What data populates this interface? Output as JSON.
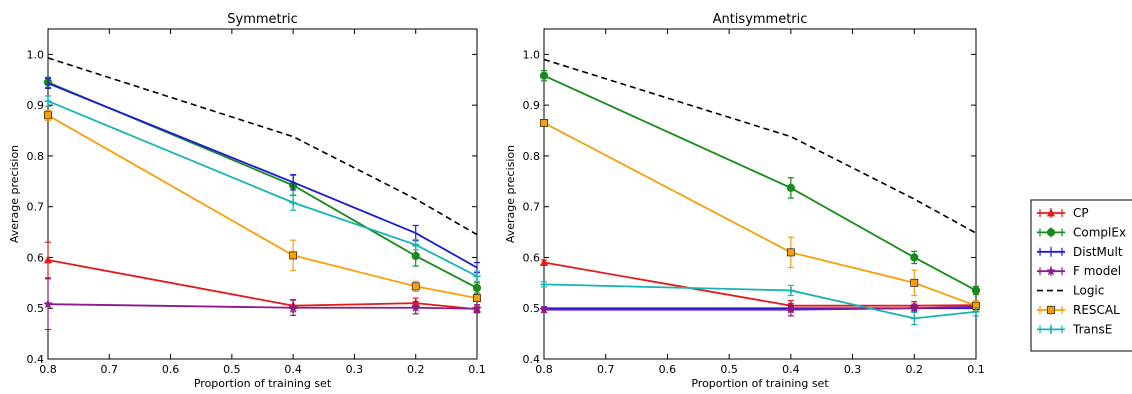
{
  "chart_data": [
    {
      "type": "line",
      "title": "Symmetric",
      "xlabel": "Proportion of training set",
      "ylabel": "Average precision",
      "x": [
        0.8,
        0.4,
        0.2,
        0.1
      ],
      "xlim": [
        0.8,
        0.1
      ],
      "ylim": [
        0.4,
        1.05
      ],
      "xticks": [
        "0.8",
        "0.7",
        "0.6",
        "0.5",
        "0.4",
        "0.3",
        "0.2",
        "0.1"
      ],
      "yticks": [
        "0.4",
        "0.5",
        "0.6",
        "0.7",
        "0.8",
        "0.9",
        "1.0"
      ],
      "grid": false,
      "series": [
        {
          "name": "CP",
          "color": "#e41a1c",
          "marker": "triangle",
          "dashed": false,
          "values": [
            0.595,
            0.505,
            0.51,
            0.498
          ],
          "errors": [
            0.035,
            0.012,
            0.01,
            0.006
          ]
        },
        {
          "name": "ComplEx",
          "color": "#1a8a1a",
          "marker": "circle",
          "dashed": false,
          "values": [
            0.945,
            0.742,
            0.603,
            0.54
          ],
          "errors": [
            0.01,
            0.02,
            0.02,
            0.01
          ]
        },
        {
          "name": "DistMult",
          "color": "#1a1adb",
          "marker": "none",
          "dashed": false,
          "values": [
            0.943,
            0.748,
            0.648,
            0.58
          ],
          "errors": [
            0.01,
            0.015,
            0.015,
            0.01
          ]
        },
        {
          "name": "F model",
          "color": "#8b1a8b",
          "marker": "star",
          "dashed": false,
          "values": [
            0.508,
            0.501,
            0.501,
            0.499
          ],
          "errors": [
            0.05,
            0.015,
            0.012,
            0.008
          ]
        },
        {
          "name": "Logic",
          "color": "#000000",
          "marker": "none",
          "dashed": true,
          "values": [
            0.993,
            0.838,
            0.715,
            0.645
          ],
          "errors": [
            0,
            0,
            0,
            0
          ]
        },
        {
          "name": "RESCAL",
          "color": "#f5a00a",
          "marker": "square",
          "dashed": false,
          "values": [
            0.88,
            0.604,
            0.543,
            0.52
          ],
          "errors": [
            0.01,
            0.03,
            0.01,
            0.005
          ]
        },
        {
          "name": "TransE",
          "color": "#17b3b3",
          "marker": "cross",
          "dashed": false,
          "values": [
            0.908,
            0.708,
            0.625,
            0.563
          ],
          "errors": [
            0.01,
            0.015,
            0.01,
            0.01
          ]
        }
      ]
    },
    {
      "type": "line",
      "title": "Antisymmetric",
      "xlabel": "Proportion of training set",
      "ylabel": "Average precision",
      "x": [
        0.8,
        0.4,
        0.2,
        0.1
      ],
      "xlim": [
        0.8,
        0.1
      ],
      "ylim": [
        0.4,
        1.05
      ],
      "xticks": [
        "0.8",
        "0.7",
        "0.6",
        "0.5",
        "0.4",
        "0.3",
        "0.2",
        "0.1"
      ],
      "yticks": [
        "0.4",
        "0.5",
        "0.6",
        "0.7",
        "0.8",
        "0.9",
        "1.0"
      ],
      "grid": false,
      "series": [
        {
          "name": "CP",
          "color": "#e41a1c",
          "marker": "triangle",
          "dashed": false,
          "values": [
            0.59,
            0.505,
            0.505,
            0.506
          ],
          "errors": [
            0.005,
            0.01,
            0.008,
            0.005
          ]
        },
        {
          "name": "ComplEx",
          "color": "#1a8a1a",
          "marker": "circle",
          "dashed": false,
          "values": [
            0.958,
            0.737,
            0.6,
            0.535
          ],
          "errors": [
            0.01,
            0.02,
            0.012,
            0.008
          ]
        },
        {
          "name": "DistMult",
          "color": "#1a1adb",
          "marker": "none",
          "dashed": false,
          "values": [
            0.5,
            0.5,
            0.5,
            0.5
          ],
          "errors": [
            0.003,
            0.005,
            0.005,
            0.003
          ]
        },
        {
          "name": "F model",
          "color": "#8b1a8b",
          "marker": "star",
          "dashed": false,
          "values": [
            0.497,
            0.497,
            0.5,
            0.503
          ],
          "errors": [
            0.005,
            0.012,
            0.008,
            0.005
          ]
        },
        {
          "name": "Logic",
          "color": "#000000",
          "marker": "none",
          "dashed": true,
          "values": [
            0.99,
            0.838,
            0.715,
            0.648
          ],
          "errors": [
            0,
            0,
            0,
            0
          ]
        },
        {
          "name": "RESCAL",
          "color": "#f5a00a",
          "marker": "square",
          "dashed": false,
          "values": [
            0.865,
            0.61,
            0.55,
            0.505
          ],
          "errors": [
            0.005,
            0.03,
            0.025,
            0.01
          ]
        },
        {
          "name": "TransE",
          "color": "#17b3b3",
          "marker": "cross",
          "dashed": false,
          "values": [
            0.547,
            0.535,
            0.48,
            0.493
          ],
          "errors": [
            0.005,
            0.01,
            0.012,
            0.008
          ]
        }
      ]
    }
  ],
  "legend": {
    "placement": "right",
    "items": [
      {
        "name": "CP",
        "color": "#e41a1c",
        "marker": "triangle",
        "dashed": false
      },
      {
        "name": "ComplEx",
        "color": "#1a8a1a",
        "marker": "circle",
        "dashed": false
      },
      {
        "name": "DistMult",
        "color": "#1a1adb",
        "marker": "none",
        "dashed": false
      },
      {
        "name": "F model",
        "color": "#8b1a8b",
        "marker": "star",
        "dashed": false
      },
      {
        "name": "Logic",
        "color": "#000000",
        "marker": "none",
        "dashed": true
      },
      {
        "name": "RESCAL",
        "color": "#f5a00a",
        "marker": "square",
        "dashed": false
      },
      {
        "name": "TransE",
        "color": "#17b3b3",
        "marker": "cross",
        "dashed": false
      }
    ]
  }
}
